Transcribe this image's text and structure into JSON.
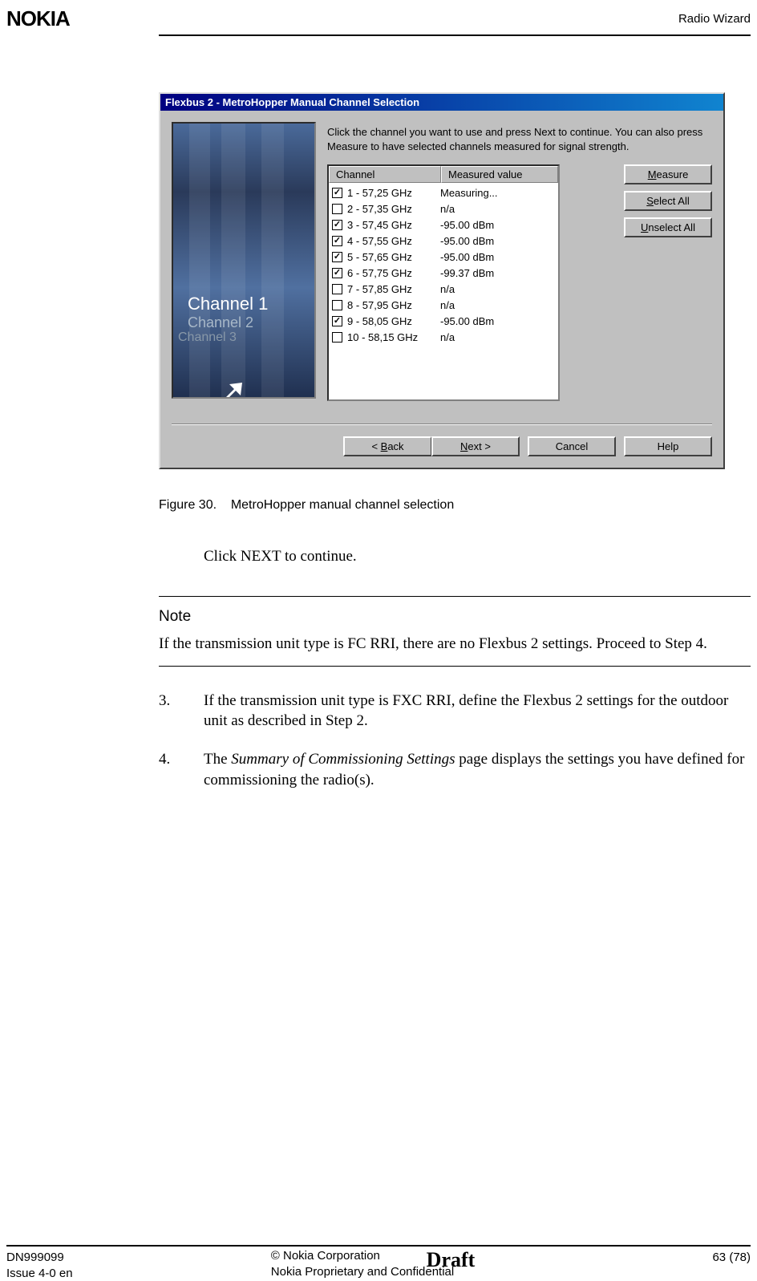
{
  "header": {
    "logo": "NOKIA",
    "section": "Radio Wizard"
  },
  "dialog": {
    "title": "Flexbus 2 - MetroHopper Manual Channel Selection",
    "instruction": "Click the channel you want to use and press Next to continue. You can also press Measure to have selected channels measured for signal strength.",
    "image_labels": {
      "ch1": "Channel 1",
      "ch2": "Channel 2",
      "ch3": "Channel 3"
    },
    "columns": {
      "channel": "Channel",
      "value": "Measured value"
    },
    "rows": [
      {
        "checked": true,
        "channel": "1 - 57,25 GHz",
        "value": "Measuring..."
      },
      {
        "checked": false,
        "channel": "2 - 57,35 GHz",
        "value": "n/a"
      },
      {
        "checked": true,
        "channel": "3 - 57,45 GHz",
        "value": "-95.00 dBm"
      },
      {
        "checked": true,
        "channel": "4 - 57,55 GHz",
        "value": "-95.00 dBm"
      },
      {
        "checked": true,
        "channel": "5 - 57,65 GHz",
        "value": "-95.00 dBm"
      },
      {
        "checked": true,
        "channel": "6 - 57,75 GHz",
        "value": "-99.37 dBm"
      },
      {
        "checked": false,
        "channel": "7 - 57,85 GHz",
        "value": "n/a"
      },
      {
        "checked": false,
        "channel": "8 - 57,95 GHz",
        "value": "n/a"
      },
      {
        "checked": true,
        "channel": "9 - 58,05 GHz",
        "value": "-95.00 dBm"
      },
      {
        "checked": false,
        "channel": "10 - 58,15 GHz",
        "value": "n/a"
      }
    ],
    "side_buttons": {
      "measure_pre": "",
      "measure_ul": "M",
      "measure_post": "easure",
      "select_pre": "",
      "select_ul": "S",
      "select_post": "elect All",
      "unselect_pre": "",
      "unselect_ul": "U",
      "unselect_post": "nselect All"
    },
    "nav": {
      "back_pre": "< ",
      "back_ul": "B",
      "back_post": "ack",
      "next_pre": "",
      "next_ul": "N",
      "next_post": "ext >",
      "cancel": "Cancel",
      "help": "Help"
    }
  },
  "figure_caption_prefix": "Figure 30.",
  "figure_caption_text": "MetroHopper manual channel selection",
  "click_next": "Click NEXT to continue.",
  "note": {
    "title": "Note",
    "body": "If the transmission unit type is FC RRI, there are no Flexbus 2 settings. Proceed to Step 4."
  },
  "steps": [
    {
      "num": "3.",
      "text": "If the transmission unit type is FXC RRI, define the Flexbus 2 settings for the outdoor unit as described in Step 2."
    },
    {
      "num": "4.",
      "text_pre": "The ",
      "text_ital": "Summary of Commissioning Settings",
      "text_post": " page displays the settings you have defined for commissioning the radio(s)."
    }
  ],
  "footer": {
    "doc_id": "DN999099",
    "issue": "Issue 4-0 en",
    "copyright": "© Nokia Corporation",
    "confidential": "Nokia Proprietary and Confidential",
    "draft": "Draft",
    "page": "63 (78)"
  },
  "colors": {
    "titlebar_start": "#000080",
    "titlebar_end": "#1084d0",
    "win_face": "#c0c0c0"
  }
}
